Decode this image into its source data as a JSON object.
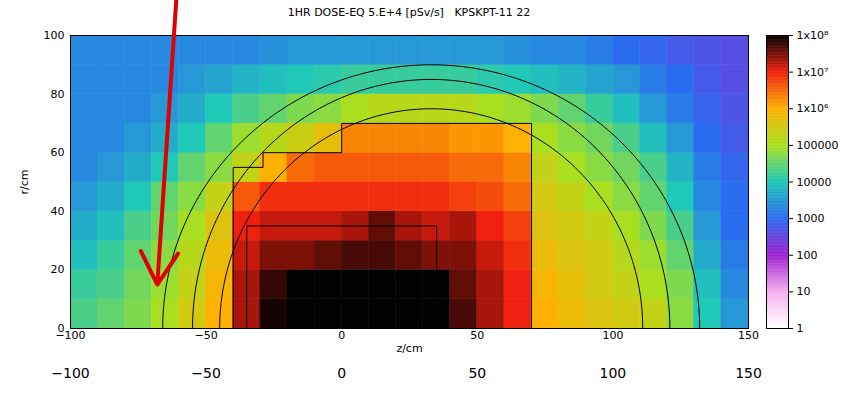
{
  "chart_data": {
    "type": "heatmap",
    "title": "1HR DOSE-EQ 5.E+4 [pSv/s]   KPSKPT-11 22",
    "xlabel": "z/cm",
    "ylabel": "r/cm",
    "xlim": [
      -100,
      150
    ],
    "ylim": [
      0,
      100
    ],
    "xticks": [
      -100,
      -50,
      0,
      50,
      100,
      150
    ],
    "yticks": [
      0,
      20,
      40,
      60,
      80,
      100
    ],
    "z_edges": [
      -100,
      -90,
      -80,
      -70,
      -60,
      -50,
      -40,
      -30,
      -20,
      -10,
      0,
      10,
      20,
      30,
      40,
      50,
      60,
      70,
      80,
      90,
      100,
      110,
      120,
      130,
      140,
      150
    ],
    "r_edges": [
      0,
      10,
      20,
      30,
      40,
      50,
      60,
      70,
      80,
      90,
      100
    ],
    "cells": [
      [
        20000,
        30000,
        50000,
        100000,
        300000,
        1000000,
        20000000,
        80000000,
        200000000,
        200000000,
        200000000,
        200000000,
        200000000,
        200000000,
        50000000,
        20000000,
        10000000,
        1000000,
        600000,
        400000,
        300000,
        200000,
        60000,
        10000,
        3000
      ],
      [
        15000,
        20000,
        40000,
        80000,
        200000,
        800000,
        20000000,
        60000000,
        200000000,
        200000000,
        200000000,
        200000000,
        200000000,
        200000000,
        40000000,
        20000000,
        10000000,
        800000,
        500000,
        300000,
        200000,
        100000,
        50000,
        8000,
        2000
      ],
      [
        8000,
        15000,
        30000,
        60000,
        150000,
        600000,
        15000000,
        30000000,
        30000000,
        40000000,
        50000000,
        50000000,
        40000000,
        30000000,
        30000000,
        15000000,
        8000000,
        600000,
        400000,
        300000,
        150000,
        80000,
        30000,
        5000,
        1500
      ],
      [
        5000,
        8000,
        20000,
        40000,
        100000,
        400000,
        10000000,
        15000000,
        15000000,
        15000000,
        20000000,
        40000000,
        20000000,
        15000000,
        20000000,
        10000000,
        6000000,
        400000,
        300000,
        200000,
        100000,
        50000,
        20000,
        3000,
        1000
      ],
      [
        3000,
        5000,
        10000,
        30000,
        60000,
        200000,
        4000000,
        8000000,
        8000000,
        8000000,
        8000000,
        8000000,
        8000000,
        8000000,
        6000000,
        5000000,
        3000000,
        300000,
        200000,
        100000,
        60000,
        30000,
        10000,
        2000,
        1000
      ],
      [
        2000,
        3000,
        5000,
        10000,
        30000,
        60000,
        200000,
        1000000,
        3000000,
        4000000,
        4000000,
        4000000,
        4000000,
        4000000,
        3000000,
        3000000,
        2000000,
        200000,
        100000,
        60000,
        40000,
        20000,
        6000,
        1500,
        800
      ],
      [
        2000,
        2000,
        3000,
        5000,
        10000,
        30000,
        80000,
        150000,
        250000,
        500000,
        2000000,
        2000000,
        2000000,
        2000000,
        1500000,
        1500000,
        1000000,
        100000,
        60000,
        40000,
        20000,
        8000,
        3000,
        1000,
        600
      ],
      [
        2000,
        2000,
        2000,
        3000,
        5000,
        10000,
        20000,
        30000,
        50000,
        60000,
        100000,
        150000,
        150000,
        150000,
        150000,
        100000,
        80000,
        50000,
        30000,
        15000,
        8000,
        3000,
        1500,
        800,
        500
      ],
      [
        2000,
        2000,
        2000,
        2000,
        3000,
        4000,
        6000,
        8000,
        10000,
        12000,
        15000,
        15000,
        15000,
        15000,
        15000,
        12000,
        10000,
        8000,
        6000,
        4000,
        3000,
        1500,
        1000,
        600,
        400
      ],
      [
        2000,
        2000,
        2000,
        2000,
        2000,
        2000,
        2000,
        2500,
        3000,
        3000,
        3000,
        3000,
        3000,
        3000,
        3000,
        3000,
        2500,
        2000,
        2000,
        1500,
        1000,
        800,
        600,
        500,
        400
      ]
    ],
    "colorbar": {
      "range": [
        1,
        100000000
      ],
      "log": true,
      "ticks": [
        {
          "value": 100000000,
          "label": "1x10⁸"
        },
        {
          "value": 10000000,
          "label": "1x10⁷"
        },
        {
          "value": 1000000,
          "label": "1x10⁶"
        },
        100000,
        10000,
        1000,
        100,
        10,
        1
      ]
    },
    "outlines": [
      {
        "type": "ellipse",
        "z0": 33,
        "rz": 99,
        "rr": 90
      },
      {
        "type": "ellipse",
        "z0": 33,
        "rz": 88,
        "rr": 85
      },
      {
        "type": "ellipse",
        "z0": 33,
        "rz": 78,
        "rr": 75
      },
      {
        "type": "polyline",
        "points": [
          [
            -40,
            0
          ],
          [
            -40,
            55
          ],
          [
            -29,
            55
          ],
          [
            -29,
            60
          ],
          [
            0,
            60
          ],
          [
            0,
            70
          ],
          [
            70,
            70
          ],
          [
            70,
            0
          ]
        ]
      },
      {
        "type": "polyline",
        "points": [
          [
            -35,
            0
          ],
          [
            -35,
            35
          ],
          [
            35,
            35
          ],
          [
            35,
            0
          ]
        ]
      }
    ],
    "annotations": [
      {
        "type": "arrow",
        "x1": -61,
        "y1": 112,
        "x2": -68,
        "y2": 15,
        "color": "#e00000"
      }
    ]
  }
}
